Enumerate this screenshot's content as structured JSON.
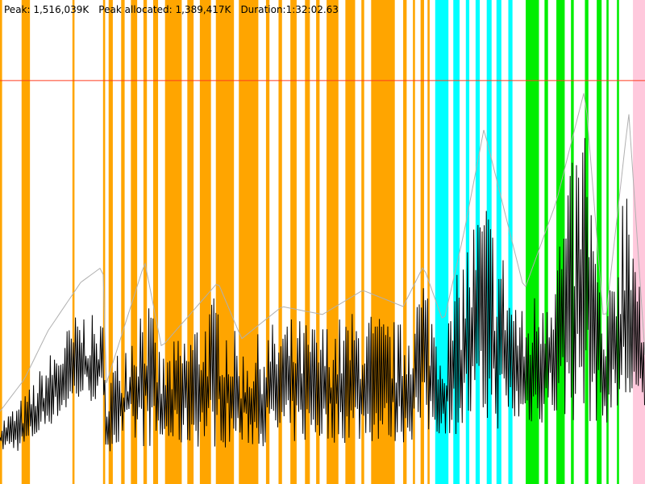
{
  "stats": {
    "peak": "Peak: 1,516,039K",
    "peak_allocated": "Peak allocated: 1,389,417K",
    "duration": "Duration:1:32:02.63"
  },
  "chart_data": {
    "type": "line",
    "title": "",
    "xlabel": "",
    "ylabel": "",
    "x_unit": "seconds",
    "y_unit": "K",
    "xlim": [
      0,
      92.63
    ],
    "ylim": [
      0,
      1819000
    ],
    "peak_line": {
      "value": 1516039,
      "color": "#ff3b1f"
    },
    "colors": {
      "allocated": "#000000",
      "peak_envelope": "#b0b0b0",
      "orange": "#ffa500",
      "cyan": "#00ffff",
      "green": "#00ee00",
      "pink": "#ffc8dc"
    },
    "bands": {
      "orange": [
        [
          0,
          0.3
        ],
        [
          3.1,
          4.3
        ],
        [
          10.4,
          10.7
        ],
        [
          14.8,
          15.1
        ],
        [
          15.6,
          16.2
        ],
        [
          17.4,
          17.9
        ],
        [
          18.8,
          19.7
        ],
        [
          20.6,
          21.1
        ],
        [
          22.0,
          22.7
        ],
        [
          23.7,
          26.1
        ],
        [
          26.9,
          27.8
        ],
        [
          28.7,
          30.3
        ],
        [
          31.0,
          33.6
        ],
        [
          34.3,
          37.1
        ],
        [
          38.2,
          38.7
        ],
        [
          40.0,
          40.5
        ],
        [
          41.7,
          42.6
        ],
        [
          43.8,
          44.5
        ],
        [
          45.4,
          45.9
        ],
        [
          46.9,
          48.6
        ],
        [
          49.6,
          51.0
        ],
        [
          51.9,
          52.3
        ],
        [
          53.3,
          56.7
        ],
        [
          57.9,
          58.4
        ],
        [
          59.3,
          59.6
        ],
        [
          60.4,
          60.9
        ],
        [
          61.4,
          61.7
        ]
      ],
      "cyan": [
        [
          62.5,
          64.4
        ],
        [
          65.1,
          66.0
        ],
        [
          66.9,
          67.4
        ],
        [
          68.3,
          68.9
        ],
        [
          69.9,
          70.6
        ],
        [
          71.3,
          72.0
        ],
        [
          73.0,
          73.6
        ]
      ],
      "green": [
        [
          75.5,
          77.4
        ],
        [
          78.2,
          78.7
        ],
        [
          79.9,
          81.1
        ],
        [
          82.0,
          82.4
        ],
        [
          84.0,
          84.5
        ],
        [
          85.7,
          86.4
        ],
        [
          87.1,
          87.4
        ],
        [
          88.6,
          88.9
        ]
      ],
      "pink": [
        [
          90.9,
          92.63
        ]
      ]
    },
    "x": [
      0,
      3.5,
      6.9,
      11.6,
      14.8,
      15.1,
      20.8,
      23.2,
      31.3,
      34.7,
      40.5,
      46.3,
      52.1,
      57.9,
      60.8,
      63.7,
      66.6,
      69.5,
      75.3,
      79.9,
      84.0,
      86.8,
      90.3,
      92.63
    ],
    "series": [
      {
        "key": "allocated_high",
        "values": [
          243000,
          334000,
          485000,
          667000,
          606000,
          394000,
          758000,
          485000,
          728000,
          515000,
          637000,
          606000,
          667000,
          606000,
          819000,
          546000,
          910000,
          1122000,
          637000,
          940000,
          1425000,
          546000,
          1364000,
          455000
        ]
      },
      {
        "key": "allocated_low",
        "values": [
          121000,
          121000,
          212000,
          303000,
          303000,
          121000,
          136000,
          136000,
          136000,
          136000,
          146000,
          152000,
          152000,
          152000,
          167000,
          182000,
          188000,
          197000,
          212000,
          227000,
          227000,
          227000,
          236000,
          243000
        ]
      },
      {
        "key": "peak_envelope",
        "values": [
          273000,
          394000,
          576000,
          758000,
          819000,
          364000,
          834000,
          515000,
          758000,
          546000,
          667000,
          637000,
          728000,
          667000,
          819000,
          606000,
          940000,
          1334000,
          728000,
          1061000,
          1486000,
          576000,
          1395000,
          485000
        ]
      }
    ]
  }
}
